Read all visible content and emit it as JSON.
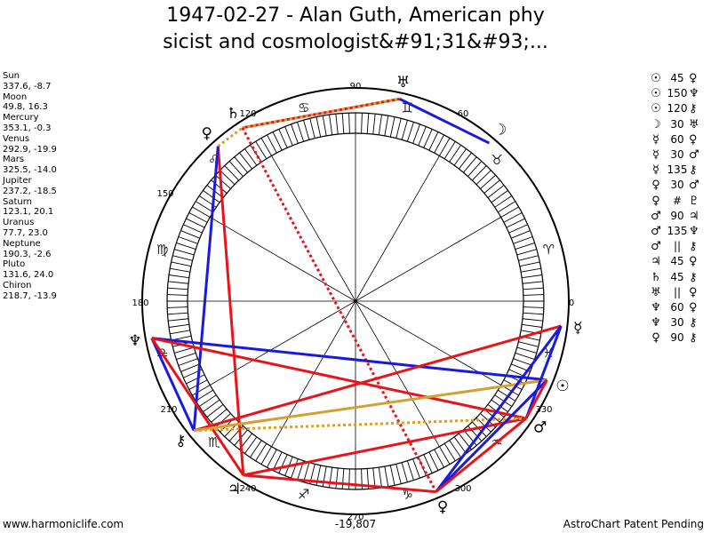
{
  "title": {
    "line1": "1947-02-27 - Alan Guth, American phy",
    "line2": "sicist and cosmologist&#91;31&#93;..."
  },
  "planets": [
    {
      "name": "Sun",
      "coords": "337.6, -8.7"
    },
    {
      "name": "Moon",
      "coords": "49.8, 16.3"
    },
    {
      "name": "Mercury",
      "coords": "353.1, -0.3"
    },
    {
      "name": "Venus",
      "coords": "292.9, -19.9"
    },
    {
      "name": "Mars",
      "coords": "325.5, -14.0"
    },
    {
      "name": "Jupiter",
      "coords": "237.2, -18.5"
    },
    {
      "name": "Saturn",
      "coords": "123.1, 20.1"
    },
    {
      "name": "Uranus",
      "coords": "77.7, 23.0"
    },
    {
      "name": "Neptune",
      "coords": "190.3, -2.6"
    },
    {
      "name": "Pluto",
      "coords": "131.6, 24.0"
    },
    {
      "name": "Chiron",
      "coords": "218.7, -13.9"
    }
  ],
  "aspects": [
    {
      "p1": "☉",
      "angle": "45",
      "p2": "♀"
    },
    {
      "p1": "☉",
      "angle": "150",
      "p2": "♆"
    },
    {
      "p1": "☉",
      "angle": "120",
      "p2": "⚷"
    },
    {
      "p1": "☽",
      "angle": "30",
      "p2": "♅"
    },
    {
      "p1": "☿",
      "angle": "60",
      "p2": "♀"
    },
    {
      "p1": "☿",
      "angle": "30",
      "p2": "♂"
    },
    {
      "p1": "☿",
      "angle": "135",
      "p2": "⚷"
    },
    {
      "p1": "♀",
      "angle": "30",
      "p2": "♂"
    },
    {
      "p1": "♀",
      "angle": "#",
      "p2": "♇"
    },
    {
      "p1": "♂",
      "angle": "90",
      "p2": "♃"
    },
    {
      "p1": "♂",
      "angle": "135",
      "p2": "♆"
    },
    {
      "p1": "♂",
      "angle": "||",
      "p2": "⚷"
    },
    {
      "p1": "♃",
      "angle": "45",
      "p2": "♀"
    },
    {
      "p1": "♄",
      "angle": "45",
      "p2": "⚷"
    },
    {
      "p1": "♅",
      "angle": "||",
      "p2": "♀"
    },
    {
      "p1": "♆",
      "angle": "60",
      "p2": "♀"
    },
    {
      "p1": "♆",
      "angle": "30",
      "p2": "⚷"
    },
    {
      "p1": "♀",
      "angle": "90",
      "p2": "⚷"
    }
  ],
  "wheel": {
    "degree_labels": [
      "0",
      "60",
      "90",
      "120",
      "150",
      "180",
      "210",
      "240",
      "270",
      "300",
      "330"
    ],
    "zodiac_signs": [
      "♈",
      "♉",
      "♊",
      "♋",
      "♌",
      "♍",
      "♎",
      "♏",
      "♐",
      "♑",
      "♒",
      "♓"
    ],
    "planet_glyphs": [
      {
        "id": "sun",
        "glyph": "☉",
        "lon": 337.6
      },
      {
        "id": "moon",
        "glyph": "☽",
        "lon": 49.8
      },
      {
        "id": "mercury",
        "glyph": "☿",
        "lon": 353.1
      },
      {
        "id": "venus",
        "glyph": "♀",
        "lon": 292.9
      },
      {
        "id": "mars",
        "glyph": "♂",
        "lon": 325.5
      },
      {
        "id": "jupiter",
        "glyph": "♃",
        "lon": 237.2
      },
      {
        "id": "saturn",
        "glyph": "♄",
        "lon": 123.1
      },
      {
        "id": "uranus",
        "glyph": "♅",
        "lon": 77.7
      },
      {
        "id": "neptune",
        "glyph": "♆",
        "lon": 190.3
      },
      {
        "id": "pluto",
        "glyph": "♀",
        "lon": 131.6
      },
      {
        "id": "chiron",
        "glyph": "⚷",
        "lon": 218.7
      }
    ],
    "aspect_lines": [
      {
        "a": "saturn",
        "b": "uranus",
        "color": "#e8141c",
        "style": "solid"
      },
      {
        "a": "uranus",
        "b": "moon",
        "color": "#1a1adf",
        "style": "solid"
      },
      {
        "a": "saturn",
        "b": "uranus",
        "color": "#d4a032",
        "style": "dotted"
      },
      {
        "a": "pluto",
        "b": "saturn",
        "color": "#d4a032",
        "style": "dotted"
      },
      {
        "a": "saturn",
        "b": "venus",
        "color": "#e8141c",
        "style": "dotted"
      },
      {
        "a": "pluto",
        "b": "jupiter",
        "color": "#e8141c",
        "style": "solid"
      },
      {
        "a": "pluto",
        "b": "chiron",
        "color": "#1a1adf",
        "style": "solid"
      },
      {
        "a": "neptune",
        "b": "chiron",
        "color": "#1a1adf",
        "style": "solid"
      },
      {
        "a": "neptune",
        "b": "sun",
        "color": "#1a1adf",
        "style": "solid"
      },
      {
        "a": "neptune",
        "b": "mars",
        "color": "#e8141c",
        "style": "solid"
      },
      {
        "a": "neptune",
        "b": "jupiter",
        "color": "#e8141c",
        "style": "solid"
      },
      {
        "a": "jupiter",
        "b": "mars",
        "color": "#e8141c",
        "style": "solid"
      },
      {
        "a": "chiron",
        "b": "mercury",
        "color": "#e8141c",
        "style": "solid"
      },
      {
        "a": "chiron",
        "b": "sun",
        "color": "#d4a032",
        "style": "solid"
      },
      {
        "a": "chiron",
        "b": "mars",
        "color": "#d4a032",
        "style": "dotted"
      },
      {
        "a": "mercury",
        "b": "venus",
        "color": "#1a1adf",
        "style": "solid"
      },
      {
        "a": "sun",
        "b": "venus",
        "color": "#1a1adf",
        "style": "solid"
      },
      {
        "a": "mercury",
        "b": "mars",
        "color": "#1a1adf",
        "style": "solid"
      },
      {
        "a": "venus",
        "b": "mars",
        "color": "#e8141c",
        "style": "solid"
      },
      {
        "a": "jupiter",
        "b": "venus",
        "color": "#e8141c",
        "style": "solid"
      },
      {
        "a": "sun",
        "b": "mars",
        "color": "#e8141c",
        "style": "solid"
      }
    ]
  },
  "footer": {
    "left": "www.harmoniclife.com",
    "center": "-19,807",
    "right": "AstroChart Patent Pending"
  }
}
